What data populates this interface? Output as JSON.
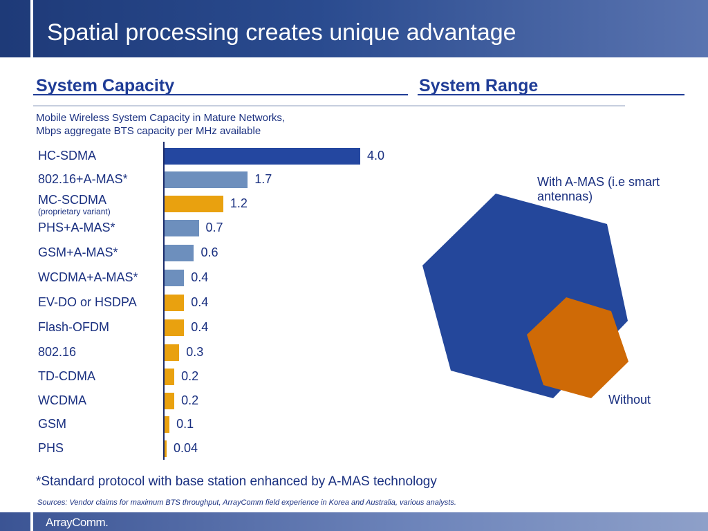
{
  "header": {
    "title": "Spatial processing creates unique advantage"
  },
  "sections": {
    "capacity": "System Capacity",
    "range": "System Range"
  },
  "subtitle": {
    "line1": "Mobile Wireless System Capacity in Mature Networks,",
    "line2": "Mbps aggregate BTS capacity per MHz available"
  },
  "colors": {
    "dark_blue": "#2447a0",
    "light_blue": "#6d8fbd",
    "orange": "#e9a10f",
    "hex_big": "#24479b",
    "hex_small": "#cf6a06"
  },
  "chart_data": {
    "type": "bar",
    "orientation": "horizontal",
    "categories": [
      "HC-SDMA",
      "802.16+A-MAS*",
      "MC-SCDMA",
      "PHS+A-MAS*",
      "GSM+A-MAS*",
      "WCDMA+A-MAS*",
      "EV-DO or HSDPA",
      "Flash-OFDM",
      "802.16",
      "TD-CDMA",
      "WCDMA",
      "GSM",
      "PHS"
    ],
    "category_notes": [
      "",
      "",
      "(proprietary variant)",
      "",
      "",
      "",
      "",
      "",
      "",
      "",
      "",
      "",
      ""
    ],
    "values": [
      4.0,
      1.7,
      1.2,
      0.7,
      0.6,
      0.4,
      0.4,
      0.4,
      0.3,
      0.2,
      0.2,
      0.1,
      0.04
    ],
    "value_labels": [
      "4.0",
      "1.7",
      "1.2",
      "0.7",
      "0.6",
      "0.4",
      "0.4",
      "0.4",
      "0.3",
      "0.2",
      "0.2",
      "0.1",
      "0.04"
    ],
    "bar_colors": [
      "dark_blue",
      "light_blue",
      "orange",
      "light_blue",
      "light_blue",
      "light_blue",
      "orange",
      "orange",
      "orange",
      "orange",
      "orange",
      "orange",
      "orange"
    ],
    "xlim": [
      0,
      4.0
    ],
    "grid": false
  },
  "range_diagram": {
    "with_label": "With A-MAS (i.e smart antennas)",
    "without_label": "Without"
  },
  "footnote": "*Standard protocol with base station enhanced by A-MAS technology",
  "sources": "Sources:  Vendor claims for maximum BTS throughput, ArrayComm field experience in Korea and Australia, various analysts.",
  "brand": "ArrayComm."
}
